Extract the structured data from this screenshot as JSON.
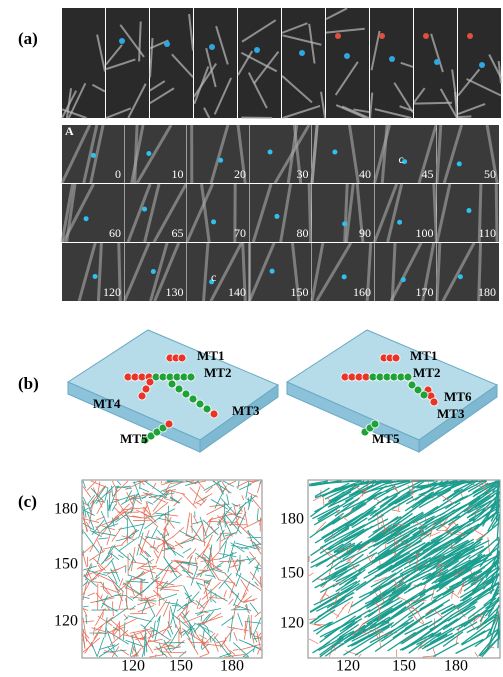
{
  "panel_a": {
    "label": "(a)",
    "sublabel": "A",
    "frame_times": [
      0,
      10,
      20,
      30,
      40,
      45,
      50,
      60,
      65,
      70,
      80,
      90,
      100,
      110,
      120,
      130,
      140,
      150,
      160,
      170,
      180
    ],
    "c_marks": [
      "c",
      "c"
    ]
  },
  "panel_b": {
    "label": "(b)",
    "left": [
      "MT1",
      "MT2",
      "MT4",
      "MT3",
      "MT5"
    ],
    "right": [
      "MT1",
      "MT2",
      "MT6",
      "MT3",
      "MT5"
    ]
  },
  "panel_c": {
    "label": "(c)",
    "left": {
      "yticks": [
        180,
        150,
        120
      ],
      "xticks": [
        120,
        150,
        180
      ]
    },
    "right": {
      "yticks": [
        180,
        150,
        120
      ],
      "xticks": [
        120,
        150,
        180
      ]
    }
  }
}
